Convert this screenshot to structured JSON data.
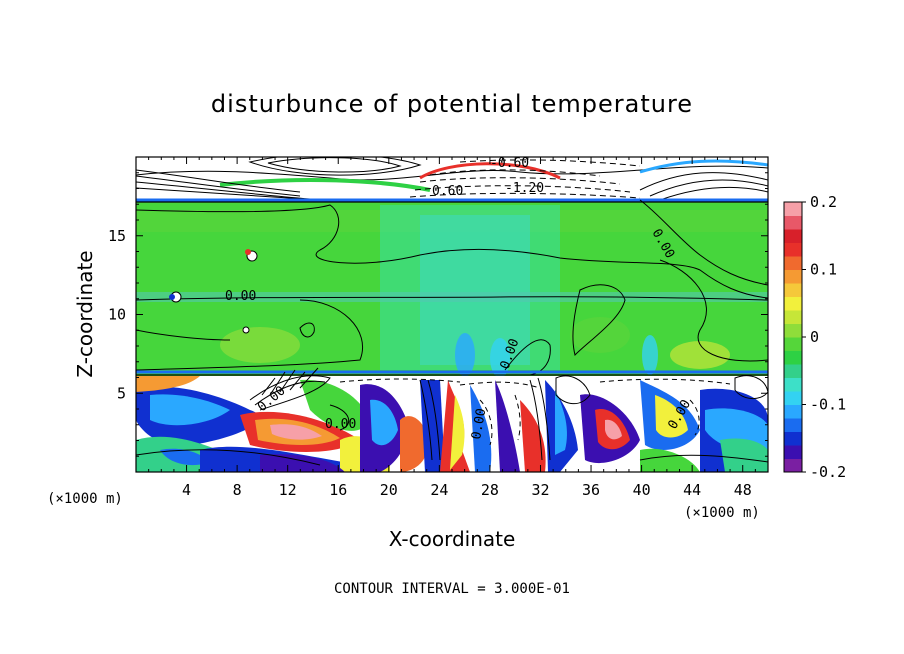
{
  "chart_data": {
    "type": "heatmap",
    "title": "disturbunce of potential temperature",
    "xlabel": "X-coordinate",
    "ylabel": "Z-coordinate",
    "x_unit": "(×1000 m)",
    "footer": "CONTOUR INTERVAL = 3.000E-01",
    "x_ticks": [
      "4",
      "8",
      "12",
      "16",
      "20",
      "24",
      "28",
      "32",
      "36",
      "40",
      "44",
      "48"
    ],
    "y_ticks": [
      "5",
      "10",
      "15"
    ],
    "xlim": [
      0,
      50
    ],
    "ylim": [
      0,
      20
    ],
    "colorbar": {
      "min": -0.2,
      "max": 0.2,
      "ticks": [
        "0.2",
        "0.1",
        "0",
        "-0.1",
        "-0.2"
      ],
      "colors": [
        "#7a1fa2",
        "#3b0fb0",
        "#1030d0",
        "#1a6cf0",
        "#2aa8ff",
        "#33d2f2",
        "#3de0c8",
        "#33d08a",
        "#2ed144",
        "#55d63a",
        "#8fdd3a",
        "#c6e638",
        "#f2f03c",
        "#f5c83a",
        "#f59a33",
        "#f06a2e",
        "#e8302a",
        "#d8202a",
        "#e85868",
        "#f6a0a8"
      ]
    },
    "contour_labels": [
      "-0.60",
      "0.60",
      "-1.20",
      "0.00",
      "0.00",
      "0.00",
      "0.00",
      "0.00",
      "0.00",
      "0.00"
    ],
    "contour_interval": 0.3
  }
}
